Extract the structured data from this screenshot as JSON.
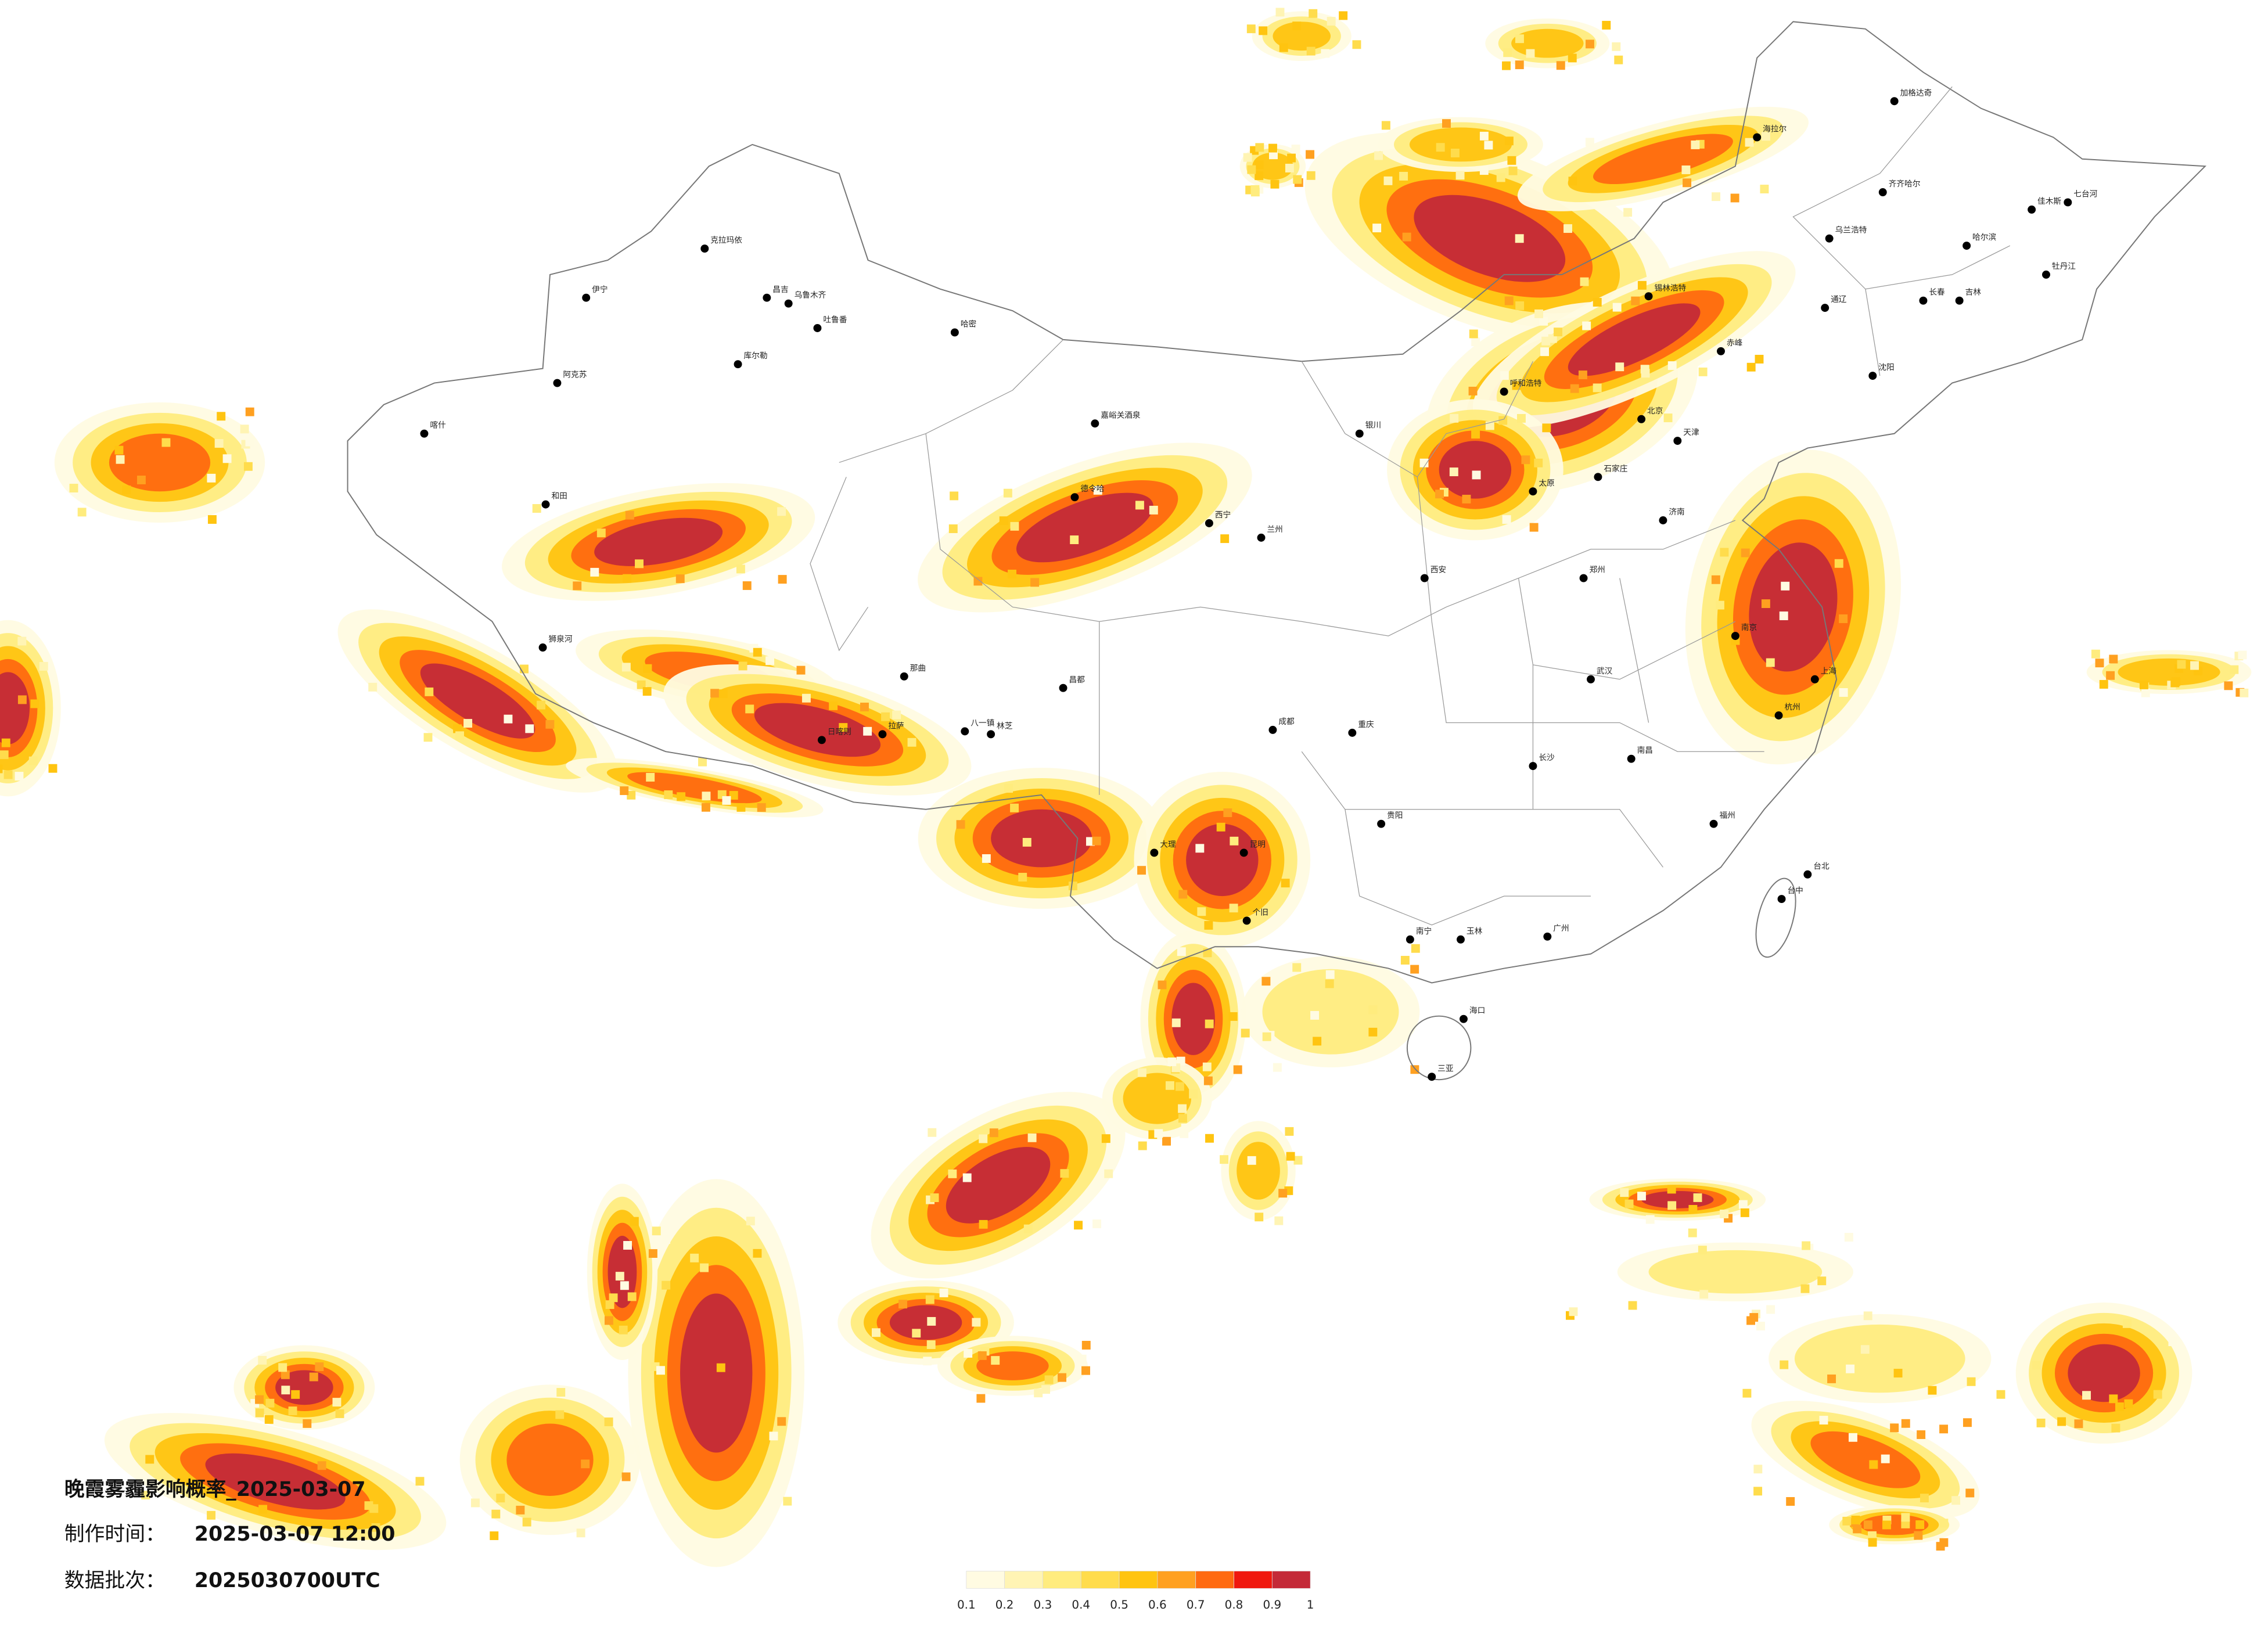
{
  "title": "晚霞雾霾影响概率_2025-03-07",
  "made": {
    "label": "制作时间：",
    "value": "2025-03-07 12:00"
  },
  "batch": {
    "label": "数据批次：",
    "value": "2025030700UTC"
  },
  "legend": {
    "colors": [
      "#fffbe2",
      "#fff4b4",
      "#ffec7e",
      "#ffdc4c",
      "#ffc410",
      "#ffa020",
      "#ff6a10",
      "#f0180e",
      "#c42a38"
    ],
    "ticks": [
      0.1,
      0.2,
      0.3,
      0.4,
      0.5,
      0.6,
      0.7,
      0.8,
      0.9,
      1
    ]
  },
  "cities": [
    "克拉玛依",
    "伊宁",
    "昌吉",
    "乌鲁木齐",
    "吐鲁番",
    "哈密",
    "库尔勒",
    "阿克苏",
    "喀什",
    "和田",
    "嘉峪关酒泉",
    "德令哈",
    "西宁",
    "兰州",
    "银川",
    "呼和浩特",
    "锡林浩特",
    "海拉尔",
    "加格达奇",
    "齐齐哈尔",
    "哈尔滨",
    "长春",
    "吉林",
    "沈阳",
    "北京",
    "天津",
    "石家庄",
    "太原",
    "济南",
    "郑州",
    "西安",
    "拉萨",
    "日喀则",
    "八一镇",
    "林芝",
    "昌都",
    "那曲",
    "狮泉河",
    "成都",
    "重庆",
    "贵阳",
    "昆明",
    "南宁",
    "广州",
    "福州",
    "台北",
    "台中",
    "南京",
    "上海",
    "杭州",
    "武汉",
    "长沙",
    "南昌",
    "海口",
    "三亚",
    "个旧",
    "大理",
    "玉林",
    "乌兰浩特",
    "七台河",
    "佳木斯",
    "牡丹江",
    "通辽",
    "赤峰"
  ]
}
